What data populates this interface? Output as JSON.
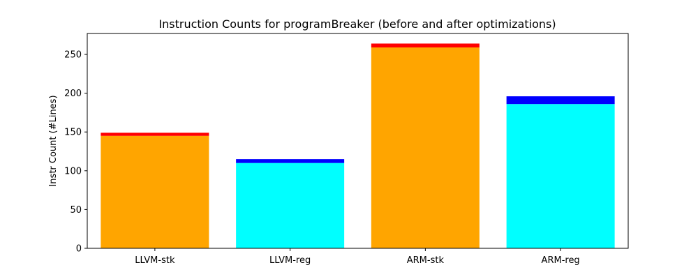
{
  "chart_data": {
    "type": "bar",
    "stacked": true,
    "title": "Instruction Counts for programBreaker (before and after optimizations)",
    "xlabel": "",
    "ylabel": "Instr Count (#Lines)",
    "categories": [
      "LLVM-stk",
      "LLVM-reg",
      "ARM-stk",
      "ARM-reg"
    ],
    "series": [
      {
        "values": [
          145,
          110,
          259,
          186
        ],
        "colors": [
          "#ffa500",
          "#00ffff",
          "#ffa500",
          "#00ffff"
        ]
      },
      {
        "values": [
          4,
          5,
          5,
          10
        ],
        "colors": [
          "#ff0000",
          "#0000ff",
          "#ff0000",
          "#0000ff"
        ]
      }
    ],
    "ylim": [
      0,
      277
    ],
    "yticks": [
      0,
      50,
      100,
      150,
      200,
      250
    ],
    "grid": false,
    "legend": "none"
  }
}
